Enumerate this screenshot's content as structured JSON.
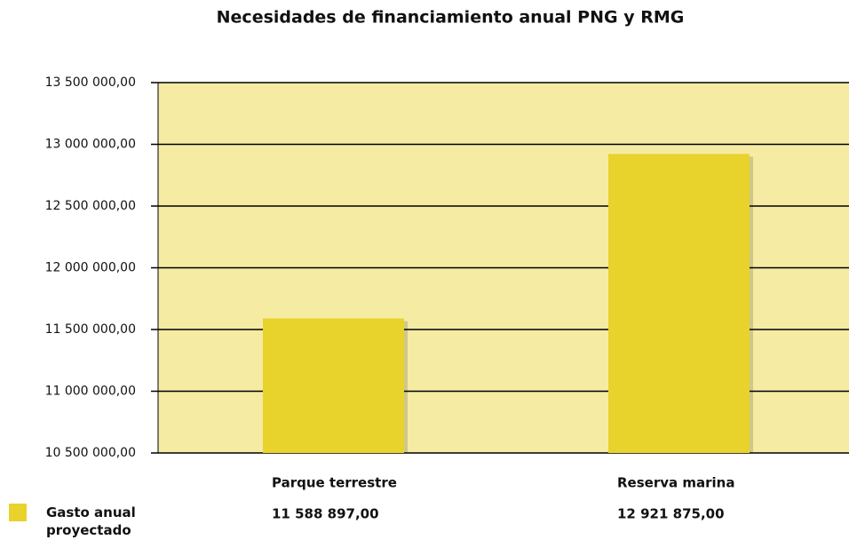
{
  "chart_data": {
    "type": "bar",
    "title": "Necesidades de financiamiento anual PNG y RMG",
    "categories": [
      "Parque terrestre",
      "Reserva marina"
    ],
    "series": [
      {
        "name": "Gasto anual proyectado",
        "color": "#e8d22c",
        "values": [
          11588897,
          12921875
        ],
        "value_labels": [
          "11 588 897,00",
          "12 921 875,00"
        ]
      }
    ],
    "ylim": [
      10500000,
      13500000
    ],
    "yticks": [
      {
        "value": 10500000,
        "label": "10 500 000,00"
      },
      {
        "value": 11000000,
        "label": "11 000 000,00"
      },
      {
        "value": 11500000,
        "label": "11 500 000,00"
      },
      {
        "value": 12000000,
        "label": "12 000 000,00"
      },
      {
        "value": 12500000,
        "label": "12 500 000,00"
      },
      {
        "value": 13000000,
        "label": "13 000 000,00"
      },
      {
        "value": 13500000,
        "label": "13 500 000,00"
      }
    ],
    "grid": true,
    "plot_background": "#f5eba3"
  }
}
